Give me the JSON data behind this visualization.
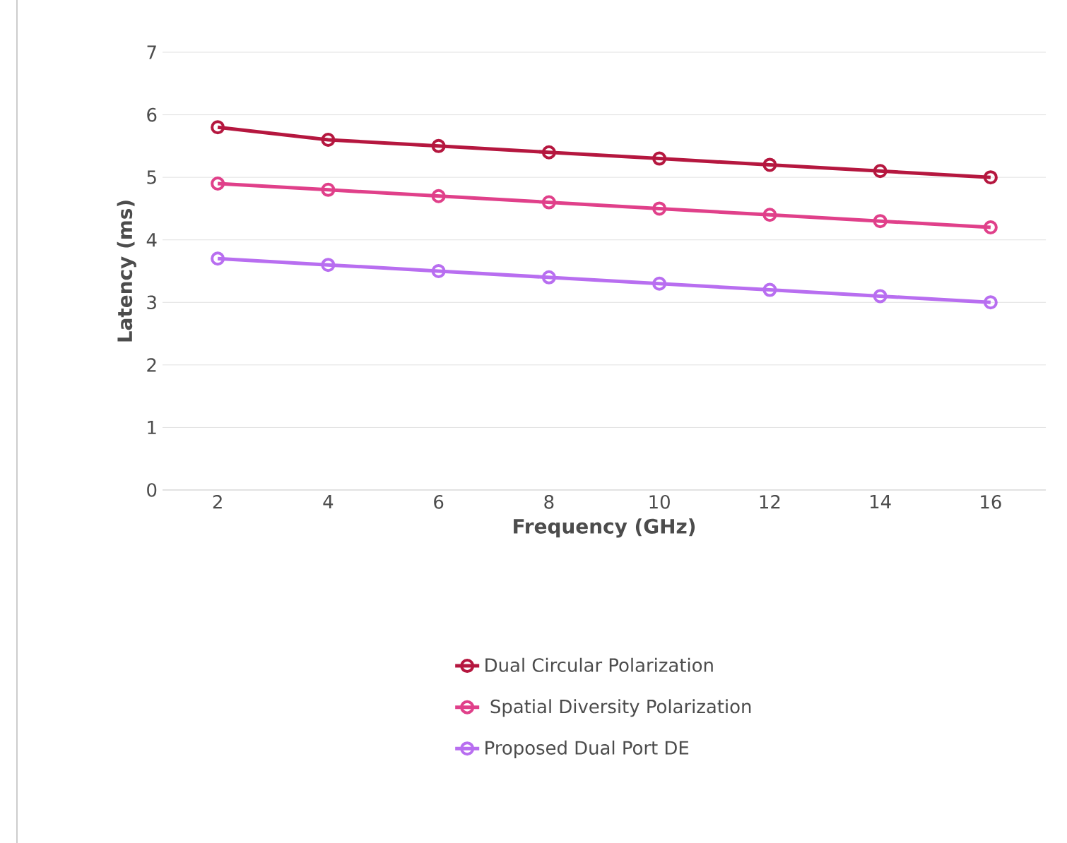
{
  "chart_data": {
    "type": "line",
    "xlabel": "Frequency (GHz)",
    "ylabel": "Latency (ms)",
    "categories": [
      "2",
      "4",
      "6",
      "8",
      "10",
      "12",
      "14",
      "16"
    ],
    "series": [
      {
        "name": "Dual Circular Polarization",
        "color": "#b5173f",
        "values": [
          5.8,
          5.6,
          5.5,
          5.4,
          5.3,
          5.2,
          5.1,
          5.0
        ]
      },
      {
        "name": " Spatial Diversity Polarization",
        "color": "#e0408a",
        "values": [
          4.9,
          4.8,
          4.7,
          4.6,
          4.5,
          4.4,
          4.3,
          4.2
        ]
      },
      {
        "name": "Proposed Dual Port DE",
        "color": "#b86ef0",
        "values": [
          3.7,
          3.6,
          3.5,
          3.4,
          3.3,
          3.2,
          3.1,
          3.0
        ]
      }
    ],
    "ylim": [
      0,
      7
    ],
    "yticks": [
      0,
      1,
      2,
      3,
      4,
      5,
      6,
      7
    ],
    "grid": "y",
    "legend": "bottom",
    "marker": "circle",
    "line_style": "solid"
  }
}
